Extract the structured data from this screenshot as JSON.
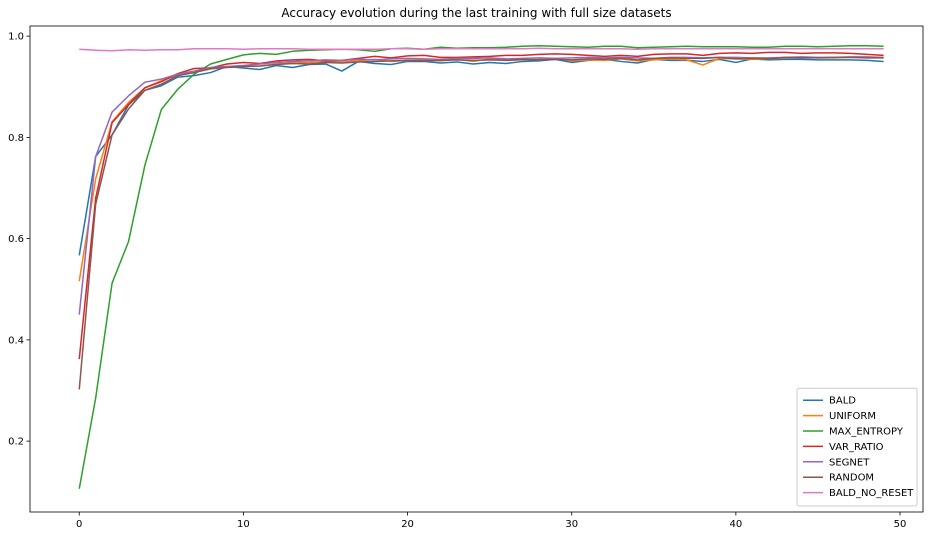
{
  "chart_data": {
    "type": "line",
    "title": "Accuracy evolution during the last training with full size datasets",
    "xlabel": "",
    "ylabel": "",
    "xlim": [
      -3,
      51.4
    ],
    "ylim": [
      0.06,
      1.02
    ],
    "xticks": [
      0,
      10,
      20,
      30,
      40,
      50
    ],
    "yticks": [
      0.2,
      0.4,
      0.6,
      0.8,
      1.0
    ],
    "ytick_labels": [
      "0.2",
      "0.4",
      "0.6",
      "0.8",
      "1.0"
    ],
    "grid": false,
    "legend_position": "bottom-right",
    "x": [
      0,
      1,
      2,
      3,
      4,
      5,
      6,
      7,
      8,
      9,
      10,
      11,
      12,
      13,
      14,
      15,
      16,
      17,
      18,
      19,
      20,
      21,
      22,
      23,
      24,
      25,
      26,
      27,
      28,
      29,
      30,
      31,
      32,
      33,
      34,
      35,
      36,
      37,
      38,
      39,
      40,
      41,
      42,
      43,
      44,
      45,
      46,
      47,
      48,
      49
    ],
    "series": [
      {
        "name": "BALD",
        "color": "#1f77b4",
        "values": [
          0.567,
          0.762,
          0.805,
          0.864,
          0.893,
          0.902,
          0.919,
          0.922,
          0.928,
          0.94,
          0.937,
          0.934,
          0.942,
          0.938,
          0.944,
          0.945,
          0.931,
          0.95,
          0.946,
          0.944,
          0.95,
          0.95,
          0.947,
          0.949,
          0.945,
          0.948,
          0.946,
          0.95,
          0.951,
          0.954,
          0.948,
          0.952,
          0.954,
          0.95,
          0.947,
          0.954,
          0.952,
          0.952,
          0.95,
          0.954,
          0.948,
          0.955,
          0.953,
          0.954,
          0.954,
          0.953,
          0.953,
          0.953,
          0.952,
          0.95
        ]
      },
      {
        "name": "UNIFORM",
        "color": "#ff7f0e",
        "values": [
          0.516,
          0.718,
          0.831,
          0.869,
          0.898,
          0.912,
          0.923,
          0.928,
          0.935,
          0.939,
          0.94,
          0.941,
          0.945,
          0.947,
          0.948,
          0.95,
          0.949,
          0.951,
          0.954,
          0.95,
          0.952,
          0.953,
          0.951,
          0.954,
          0.95,
          0.955,
          0.952,
          0.953,
          0.954,
          0.956,
          0.951,
          0.953,
          0.952,
          0.955,
          0.951,
          0.953,
          0.955,
          0.953,
          0.943,
          0.956,
          0.955,
          0.954,
          0.955,
          0.957,
          0.958,
          0.957,
          0.957,
          0.958,
          0.958,
          0.957
        ]
      },
      {
        "name": "MAX_ENTROPY",
        "color": "#2ca02c",
        "values": [
          0.106,
          0.285,
          0.512,
          0.594,
          0.745,
          0.855,
          0.895,
          0.925,
          0.945,
          0.954,
          0.963,
          0.966,
          0.964,
          0.97,
          0.972,
          0.973,
          0.974,
          0.973,
          0.97,
          0.975,
          0.976,
          0.974,
          0.978,
          0.976,
          0.977,
          0.977,
          0.978,
          0.98,
          0.981,
          0.98,
          0.979,
          0.978,
          0.98,
          0.98,
          0.977,
          0.978,
          0.979,
          0.98,
          0.979,
          0.979,
          0.979,
          0.978,
          0.978,
          0.98,
          0.98,
          0.979,
          0.98,
          0.981,
          0.981,
          0.98
        ]
      },
      {
        "name": "VAR_RATIO",
        "color": "#d62728",
        "values": [
          0.362,
          0.68,
          0.829,
          0.865,
          0.898,
          0.91,
          0.926,
          0.936,
          0.937,
          0.945,
          0.948,
          0.946,
          0.951,
          0.953,
          0.954,
          0.951,
          0.952,
          0.956,
          0.96,
          0.957,
          0.961,
          0.962,
          0.958,
          0.958,
          0.959,
          0.96,
          0.962,
          0.962,
          0.964,
          0.965,
          0.964,
          0.962,
          0.96,
          0.962,
          0.96,
          0.964,
          0.965,
          0.965,
          0.962,
          0.966,
          0.967,
          0.966,
          0.968,
          0.968,
          0.966,
          0.967,
          0.967,
          0.966,
          0.964,
          0.962
        ]
      },
      {
        "name": "SEGNET",
        "color": "#9467bd",
        "values": [
          0.45,
          0.762,
          0.85,
          0.882,
          0.909,
          0.915,
          0.925,
          0.931,
          0.938,
          0.94,
          0.942,
          0.945,
          0.948,
          0.95,
          0.951,
          0.953,
          0.952,
          0.954,
          0.953,
          0.955,
          0.956,
          0.955,
          0.954,
          0.956,
          0.956,
          0.957,
          0.955,
          0.956,
          0.957,
          0.956,
          0.957,
          0.958,
          0.957,
          0.958,
          0.957,
          0.956,
          0.958,
          0.958,
          0.957,
          0.958,
          0.958,
          0.957,
          0.957,
          0.958,
          0.959,
          0.958,
          0.958,
          0.959,
          0.959,
          0.958
        ]
      },
      {
        "name": "RANDOM",
        "color": "#8c564b",
        "values": [
          0.302,
          0.668,
          0.805,
          0.856,
          0.893,
          0.905,
          0.922,
          0.928,
          0.936,
          0.938,
          0.94,
          0.941,
          0.944,
          0.946,
          0.945,
          0.948,
          0.947,
          0.949,
          0.95,
          0.951,
          0.952,
          0.951,
          0.952,
          0.953,
          0.952,
          0.953,
          0.952,
          0.954,
          0.953,
          0.954,
          0.953,
          0.955,
          0.954,
          0.956,
          0.953,
          0.956,
          0.957,
          0.956,
          0.956,
          0.958,
          0.955,
          0.956,
          0.955,
          0.958,
          0.957,
          0.957,
          0.958,
          0.958,
          0.957,
          0.957
        ]
      },
      {
        "name": "BALD_NO_RESET",
        "color": "#e377c2",
        "values": [
          0.974,
          0.972,
          0.971,
          0.973,
          0.972,
          0.973,
          0.973,
          0.975,
          0.975,
          0.975,
          0.974,
          0.975,
          0.975,
          0.975,
          0.974,
          0.974,
          0.974,
          0.974,
          0.974,
          0.975,
          0.975,
          0.974,
          0.975,
          0.975,
          0.975,
          0.975,
          0.975,
          0.975,
          0.976,
          0.975,
          0.975,
          0.975,
          0.975,
          0.975,
          0.974,
          0.975,
          0.975,
          0.975,
          0.975,
          0.975,
          0.975,
          0.975,
          0.975,
          0.975,
          0.975,
          0.975,
          0.975,
          0.975,
          0.975,
          0.975
        ]
      }
    ]
  }
}
